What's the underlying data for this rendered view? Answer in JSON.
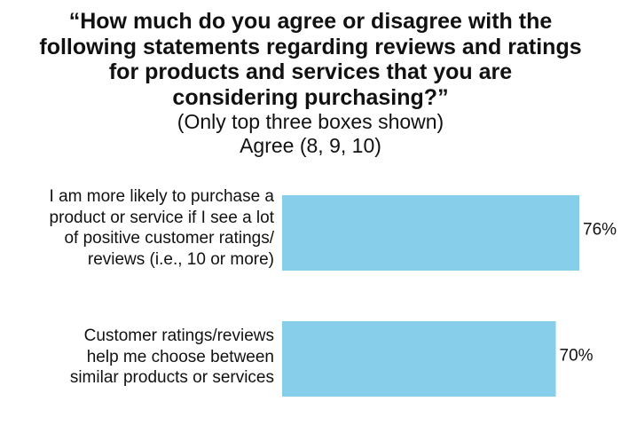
{
  "chart": {
    "title_lines": [
      "“How much do you agree or disagree with the",
      "following statements regarding reviews and ratings",
      "for products and services that you are",
      "considering purchasing?”"
    ],
    "subtitle_lines": [
      "(Only top three boxes shown)",
      "Agree (8, 9, 10)"
    ]
  },
  "chart_data": {
    "type": "bar",
    "orientation": "horizontal",
    "categories": [
      "I am more likely to purchase a product or service if I see a lot of positive customer ratings/ reviews (i.e., 10 or more)",
      "Customer ratings/reviews help me choose between similar products or services"
    ],
    "category_label_lines": [
      [
        "I am more likely to purchase a",
        "product or service if I see a lot",
        "of positive customer ratings/",
        "reviews (i.e., 10 or more)"
      ],
      [
        "Customer ratings/reviews",
        "help me choose between",
        "similar products or services"
      ]
    ],
    "values": [
      76,
      70
    ],
    "value_labels": [
      "76%",
      "70%"
    ],
    "bar_color": "#87ceeb",
    "xlim": [
      0,
      76
    ],
    "grid": false,
    "legend": "none"
  }
}
